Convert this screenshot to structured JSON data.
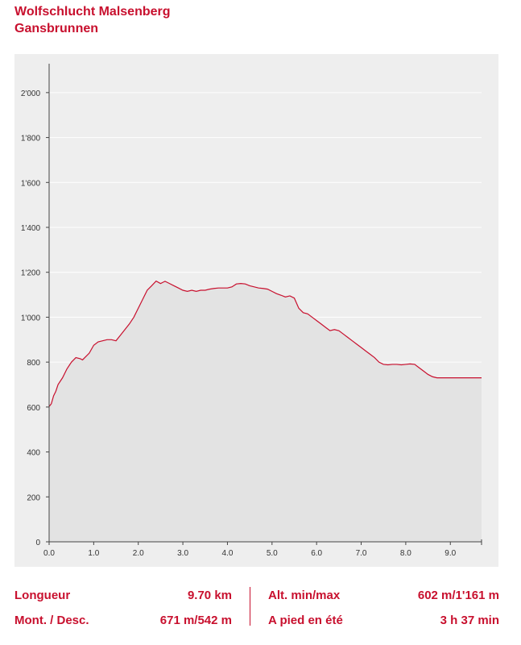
{
  "title": {
    "line1": "Wolfschlucht Malsenberg",
    "line2": "Gansbrunnen"
  },
  "chart_data": {
    "type": "area",
    "title": "",
    "xlabel": "",
    "ylabel": "",
    "xlim": [
      0,
      9.7
    ],
    "ylim": [
      0,
      2100
    ],
    "xticks": [
      0,
      1,
      2,
      3,
      4,
      5,
      6,
      7,
      8,
      9
    ],
    "xtick_labels": [
      "0.0",
      "1.0",
      "2.0",
      "3.0",
      "4.0",
      "5.0",
      "6.0",
      "7.0",
      "8.0",
      "9.0"
    ],
    "yticks": [
      0,
      200,
      400,
      600,
      800,
      1000,
      1200,
      1400,
      1600,
      1800,
      2000
    ],
    "ytick_labels": [
      "0",
      "200",
      "400",
      "600",
      "800",
      "1'000",
      "1'200",
      "1'400",
      "1'600",
      "1'800",
      "2'000"
    ],
    "grid": true,
    "legend": false,
    "colors": {
      "line": "#c8102e",
      "fill": "#e3e3e3",
      "grid": "#ffffff",
      "background": "#eeeeee"
    },
    "series": [
      {
        "x": [
          0,
          0.05,
          0.1,
          0.15,
          0.2,
          0.3,
          0.4,
          0.5,
          0.6,
          0.7,
          0.75,
          0.8,
          0.9,
          1.0,
          1.1,
          1.2,
          1.3,
          1.4,
          1.5,
          1.6,
          1.7,
          1.8,
          1.9,
          2.0,
          2.1,
          2.2,
          2.3,
          2.4,
          2.5,
          2.55,
          2.6,
          2.7,
          2.8,
          2.9,
          3.0,
          3.1,
          3.2,
          3.3,
          3.4,
          3.5,
          3.6,
          3.7,
          3.8,
          3.9,
          4.0,
          4.1,
          4.2,
          4.3,
          4.4,
          4.5,
          4.6,
          4.7,
          4.8,
          4.9,
          5.0,
          5.1,
          5.2,
          5.3,
          5.4,
          5.5,
          5.6,
          5.7,
          5.8,
          5.9,
          6.0,
          6.1,
          6.2,
          6.3,
          6.4,
          6.5,
          6.6,
          6.7,
          6.8,
          6.9,
          7.0,
          7.1,
          7.2,
          7.3,
          7.4,
          7.5,
          7.6,
          7.7,
          7.8,
          7.9,
          8.0,
          8.1,
          8.2,
          8.3,
          8.4,
          8.5,
          8.6,
          8.7,
          8.8,
          8.9,
          9.0,
          9.1,
          9.2,
          9.3,
          9.4,
          9.5,
          9.6,
          9.7
        ],
        "y": [
          602,
          615,
          650,
          670,
          700,
          730,
          770,
          800,
          820,
          815,
          810,
          820,
          840,
          875,
          890,
          895,
          900,
          900,
          895,
          920,
          945,
          970,
          1000,
          1040,
          1080,
          1120,
          1140,
          1161,
          1150,
          1155,
          1160,
          1150,
          1140,
          1130,
          1120,
          1115,
          1120,
          1115,
          1120,
          1120,
          1125,
          1128,
          1130,
          1130,
          1130,
          1135,
          1148,
          1150,
          1148,
          1140,
          1135,
          1130,
          1128,
          1125,
          1115,
          1105,
          1098,
          1090,
          1095,
          1085,
          1040,
          1020,
          1015,
          1000,
          985,
          970,
          955,
          940,
          945,
          940,
          925,
          910,
          895,
          880,
          865,
          850,
          835,
          820,
          800,
          790,
          788,
          790,
          790,
          788,
          790,
          792,
          790,
          775,
          760,
          745,
          735,
          730,
          730,
          730,
          730,
          730,
          730,
          730,
          730,
          730,
          730,
          730
        ]
      }
    ]
  },
  "stats": {
    "length_label": "Longueur",
    "length_value": "9.70 km",
    "ascent_label": "Mont. / Desc.",
    "ascent_value": "671 m/542 m",
    "alt_label": "Alt. min/max",
    "alt_value": "602 m/1'161 m",
    "walk_label": "A pied en été",
    "walk_value": "3 h 37 min"
  }
}
